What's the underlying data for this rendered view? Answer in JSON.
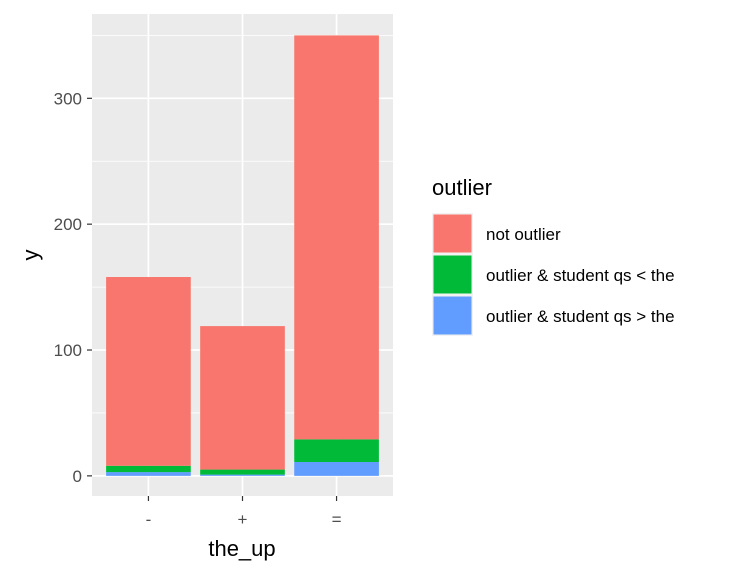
{
  "chart_data": {
    "type": "bar",
    "stacked": true,
    "categories": [
      "-",
      "+",
      "="
    ],
    "series": [
      {
        "name": "outlier & student qs > the",
        "color": "#619CFF",
        "values": [
          3,
          1,
          11
        ]
      },
      {
        "name": "outlier & student qs < the",
        "color": "#00BA38",
        "values": [
          5,
          4,
          18
        ]
      },
      {
        "name": "not outlier",
        "color": "#F8766D",
        "values": [
          150,
          114,
          321
        ]
      }
    ],
    "xlabel": "the_up",
    "ylabel": "y",
    "ylim": [
      -16,
      367
    ],
    "yticks": [
      0,
      100,
      200,
      300
    ],
    "grid": true,
    "legend": {
      "title": "outlier",
      "position": "right",
      "order": [
        "not outlier",
        "outlier & student qs < the",
        "outlier & student qs > the"
      ]
    }
  }
}
